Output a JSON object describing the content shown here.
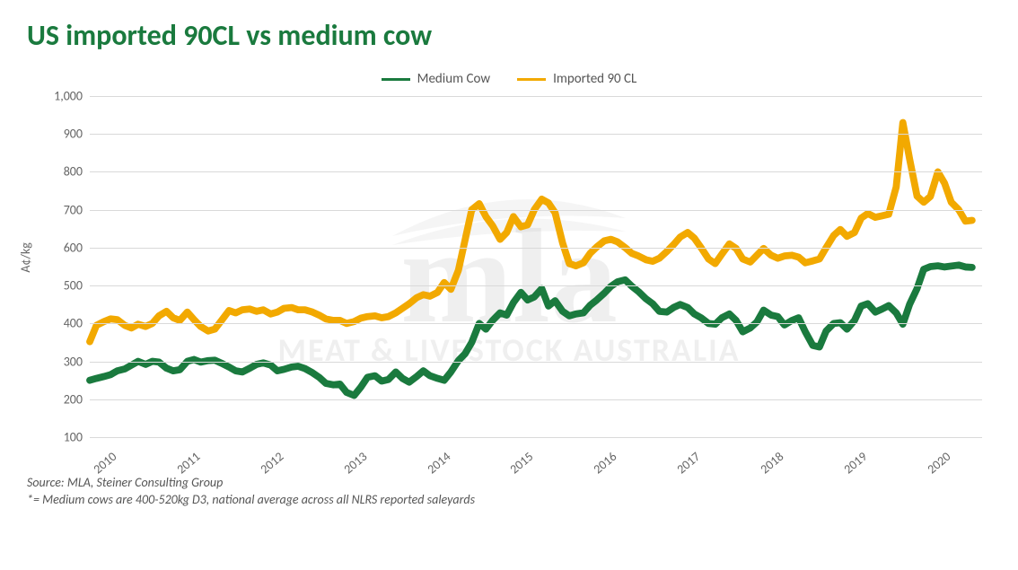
{
  "title": "US imported 90CL vs medium cow",
  "ylabel": "A¢/kg",
  "legend": [
    {
      "label": "Medium Cow",
      "color": "#1a7a3e"
    },
    {
      "label": "Imported 90 CL",
      "color": "#f4bői000"
    }
  ],
  "chart": {
    "type": "line",
    "ylim": [
      100,
      1000
    ],
    "ytick_step": 100,
    "yticks": [
      100,
      200,
      300,
      400,
      500,
      600,
      700,
      800,
      900,
      "1,000"
    ],
    "xlim": [
      2010,
      2020.7
    ],
    "xticks": [
      2010,
      2011,
      2012,
      2013,
      2014,
      2015,
      2016,
      2017,
      2018,
      2019,
      2020
    ],
    "grid_color": "#d9d9d9",
    "background_color": "#ffffff",
    "line_width": 3,
    "series": [
      {
        "name": "Medium Cow",
        "color": "#1a7a3e",
        "data": [
          [
            2010.0,
            250
          ],
          [
            2010.08,
            255
          ],
          [
            2010.17,
            260
          ],
          [
            2010.25,
            265
          ],
          [
            2010.33,
            275
          ],
          [
            2010.42,
            280
          ],
          [
            2010.5,
            290
          ],
          [
            2010.58,
            300
          ],
          [
            2010.67,
            292
          ],
          [
            2010.75,
            300
          ],
          [
            2010.83,
            298
          ],
          [
            2010.92,
            282
          ],
          [
            2011.0,
            275
          ],
          [
            2011.08,
            278
          ],
          [
            2011.17,
            300
          ],
          [
            2011.25,
            305
          ],
          [
            2011.33,
            298
          ],
          [
            2011.42,
            302
          ],
          [
            2011.5,
            303
          ],
          [
            2011.58,
            295
          ],
          [
            2011.67,
            285
          ],
          [
            2011.75,
            275
          ],
          [
            2011.83,
            272
          ],
          [
            2011.92,
            282
          ],
          [
            2012.0,
            292
          ],
          [
            2012.08,
            296
          ],
          [
            2012.17,
            290
          ],
          [
            2012.25,
            275
          ],
          [
            2012.33,
            279
          ],
          [
            2012.42,
            285
          ],
          [
            2012.5,
            287
          ],
          [
            2012.58,
            281
          ],
          [
            2012.67,
            270
          ],
          [
            2012.75,
            258
          ],
          [
            2012.83,
            242
          ],
          [
            2012.92,
            238
          ],
          [
            2013.0,
            240
          ],
          [
            2013.08,
            218
          ],
          [
            2013.17,
            210
          ],
          [
            2013.25,
            232
          ],
          [
            2013.33,
            258
          ],
          [
            2013.42,
            262
          ],
          [
            2013.5,
            248
          ],
          [
            2013.58,
            252
          ],
          [
            2013.67,
            272
          ],
          [
            2013.75,
            255
          ],
          [
            2013.83,
            245
          ],
          [
            2013.92,
            260
          ],
          [
            2014.0,
            275
          ],
          [
            2014.08,
            262
          ],
          [
            2014.17,
            255
          ],
          [
            2014.25,
            250
          ],
          [
            2014.33,
            272
          ],
          [
            2014.42,
            302
          ],
          [
            2014.5,
            320
          ],
          [
            2014.58,
            350
          ],
          [
            2014.67,
            400
          ],
          [
            2014.75,
            385
          ],
          [
            2014.83,
            408
          ],
          [
            2014.92,
            428
          ],
          [
            2015.0,
            422
          ],
          [
            2015.08,
            455
          ],
          [
            2015.17,
            482
          ],
          [
            2015.25,
            462
          ],
          [
            2015.33,
            470
          ],
          [
            2015.42,
            492
          ],
          [
            2015.5,
            446
          ],
          [
            2015.58,
            460
          ],
          [
            2015.67,
            432
          ],
          [
            2015.75,
            420
          ],
          [
            2015.83,
            425
          ],
          [
            2015.92,
            428
          ],
          [
            2016.0,
            448
          ],
          [
            2016.08,
            462
          ],
          [
            2016.17,
            480
          ],
          [
            2016.25,
            498
          ],
          [
            2016.33,
            510
          ],
          [
            2016.42,
            515
          ],
          [
            2016.5,
            498
          ],
          [
            2016.58,
            484
          ],
          [
            2016.67,
            465
          ],
          [
            2016.75,
            452
          ],
          [
            2016.83,
            432
          ],
          [
            2016.92,
            430
          ],
          [
            2017.0,
            442
          ],
          [
            2017.08,
            450
          ],
          [
            2017.17,
            442
          ],
          [
            2017.25,
            425
          ],
          [
            2017.33,
            415
          ],
          [
            2017.42,
            400
          ],
          [
            2017.5,
            398
          ],
          [
            2017.58,
            415
          ],
          [
            2017.67,
            425
          ],
          [
            2017.75,
            408
          ],
          [
            2017.83,
            378
          ],
          [
            2017.92,
            388
          ],
          [
            2018.0,
            404
          ],
          [
            2018.08,
            435
          ],
          [
            2018.17,
            422
          ],
          [
            2018.25,
            418
          ],
          [
            2018.33,
            396
          ],
          [
            2018.42,
            408
          ],
          [
            2018.5,
            415
          ],
          [
            2018.58,
            378
          ],
          [
            2018.67,
            342
          ],
          [
            2018.75,
            338
          ],
          [
            2018.83,
            380
          ],
          [
            2018.92,
            400
          ],
          [
            2019.0,
            402
          ],
          [
            2019.08,
            385
          ],
          [
            2019.17,
            408
          ],
          [
            2019.25,
            446
          ],
          [
            2019.33,
            452
          ],
          [
            2019.42,
            430
          ],
          [
            2019.5,
            438
          ],
          [
            2019.58,
            447
          ],
          [
            2019.67,
            428
          ],
          [
            2019.75,
            398
          ],
          [
            2019.83,
            450
          ],
          [
            2019.92,
            492
          ],
          [
            2020.0,
            543
          ],
          [
            2020.08,
            550
          ],
          [
            2020.17,
            552
          ],
          [
            2020.25,
            549
          ],
          [
            2020.42,
            554
          ],
          [
            2020.5,
            549
          ],
          [
            2020.58,
            548
          ]
        ]
      },
      {
        "name": "Imported 90 CL",
        "color": "#f2a900",
        "data": [
          [
            2010.0,
            352
          ],
          [
            2010.08,
            395
          ],
          [
            2010.17,
            405
          ],
          [
            2010.25,
            412
          ],
          [
            2010.33,
            410
          ],
          [
            2010.42,
            395
          ],
          [
            2010.5,
            388
          ],
          [
            2010.58,
            398
          ],
          [
            2010.67,
            392
          ],
          [
            2010.75,
            400
          ],
          [
            2010.83,
            420
          ],
          [
            2010.92,
            432
          ],
          [
            2011.0,
            415
          ],
          [
            2011.08,
            408
          ],
          [
            2011.17,
            430
          ],
          [
            2011.25,
            410
          ],
          [
            2011.33,
            392
          ],
          [
            2011.42,
            380
          ],
          [
            2011.5,
            385
          ],
          [
            2011.58,
            408
          ],
          [
            2011.67,
            434
          ],
          [
            2011.75,
            428
          ],
          [
            2011.83,
            436
          ],
          [
            2011.92,
            438
          ],
          [
            2012.0,
            432
          ],
          [
            2012.08,
            436
          ],
          [
            2012.17,
            425
          ],
          [
            2012.25,
            430
          ],
          [
            2012.33,
            440
          ],
          [
            2012.42,
            442
          ],
          [
            2012.5,
            436
          ],
          [
            2012.58,
            436
          ],
          [
            2012.67,
            430
          ],
          [
            2012.75,
            422
          ],
          [
            2012.83,
            412
          ],
          [
            2012.92,
            408
          ],
          [
            2013.0,
            408
          ],
          [
            2013.08,
            400
          ],
          [
            2013.17,
            405
          ],
          [
            2013.25,
            414
          ],
          [
            2013.33,
            418
          ],
          [
            2013.42,
            420
          ],
          [
            2013.5,
            415
          ],
          [
            2013.58,
            418
          ],
          [
            2013.67,
            428
          ],
          [
            2013.75,
            440
          ],
          [
            2013.83,
            452
          ],
          [
            2013.92,
            468
          ],
          [
            2014.0,
            476
          ],
          [
            2014.08,
            472
          ],
          [
            2014.17,
            482
          ],
          [
            2014.25,
            508
          ],
          [
            2014.33,
            490
          ],
          [
            2014.42,
            540
          ],
          [
            2014.5,
            620
          ],
          [
            2014.58,
            700
          ],
          [
            2014.67,
            716
          ],
          [
            2014.75,
            682
          ],
          [
            2014.83,
            658
          ],
          [
            2014.92,
            622
          ],
          [
            2015.0,
            640
          ],
          [
            2015.08,
            682
          ],
          [
            2015.17,
            655
          ],
          [
            2015.25,
            660
          ],
          [
            2015.33,
            700
          ],
          [
            2015.42,
            728
          ],
          [
            2015.5,
            718
          ],
          [
            2015.58,
            692
          ],
          [
            2015.67,
            612
          ],
          [
            2015.75,
            558
          ],
          [
            2015.83,
            552
          ],
          [
            2015.92,
            560
          ],
          [
            2016.0,
            585
          ],
          [
            2016.08,
            602
          ],
          [
            2016.17,
            618
          ],
          [
            2016.25,
            622
          ],
          [
            2016.33,
            615
          ],
          [
            2016.42,
            600
          ],
          [
            2016.5,
            585
          ],
          [
            2016.58,
            578
          ],
          [
            2016.67,
            568
          ],
          [
            2016.75,
            564
          ],
          [
            2016.83,
            572
          ],
          [
            2016.92,
            590
          ],
          [
            2017.0,
            608
          ],
          [
            2017.08,
            628
          ],
          [
            2017.17,
            640
          ],
          [
            2017.25,
            625
          ],
          [
            2017.33,
            600
          ],
          [
            2017.42,
            570
          ],
          [
            2017.5,
            558
          ],
          [
            2017.58,
            583
          ],
          [
            2017.67,
            610
          ],
          [
            2017.75,
            598
          ],
          [
            2017.83,
            570
          ],
          [
            2017.92,
            562
          ],
          [
            2018.0,
            580
          ],
          [
            2018.08,
            598
          ],
          [
            2018.17,
            580
          ],
          [
            2018.25,
            572
          ],
          [
            2018.33,
            578
          ],
          [
            2018.42,
            580
          ],
          [
            2018.5,
            575
          ],
          [
            2018.58,
            560
          ],
          [
            2018.67,
            565
          ],
          [
            2018.75,
            570
          ],
          [
            2018.83,
            600
          ],
          [
            2018.92,
            632
          ],
          [
            2019.0,
            648
          ],
          [
            2019.08,
            630
          ],
          [
            2019.17,
            640
          ],
          [
            2019.25,
            678
          ],
          [
            2019.33,
            690
          ],
          [
            2019.42,
            680
          ],
          [
            2019.5,
            684
          ],
          [
            2019.58,
            688
          ],
          [
            2019.67,
            760
          ],
          [
            2019.75,
            930
          ],
          [
            2019.83,
            835
          ],
          [
            2019.92,
            736
          ],
          [
            2020.0,
            720
          ],
          [
            2020.08,
            735
          ],
          [
            2020.17,
            800
          ],
          [
            2020.25,
            770
          ],
          [
            2020.33,
            720
          ],
          [
            2020.42,
            700
          ],
          [
            2020.5,
            670
          ],
          [
            2020.58,
            672
          ]
        ]
      }
    ]
  },
  "footer": {
    "source": "Source: MLA, Steiner Consulting Group",
    "note": "*= Medium cows are 400-520kg D3, national average across all NLRS reported saleyards"
  },
  "watermark": {
    "logo": "mla",
    "text": "MEAT & LIVESTOCK AUSTRALIA"
  }
}
